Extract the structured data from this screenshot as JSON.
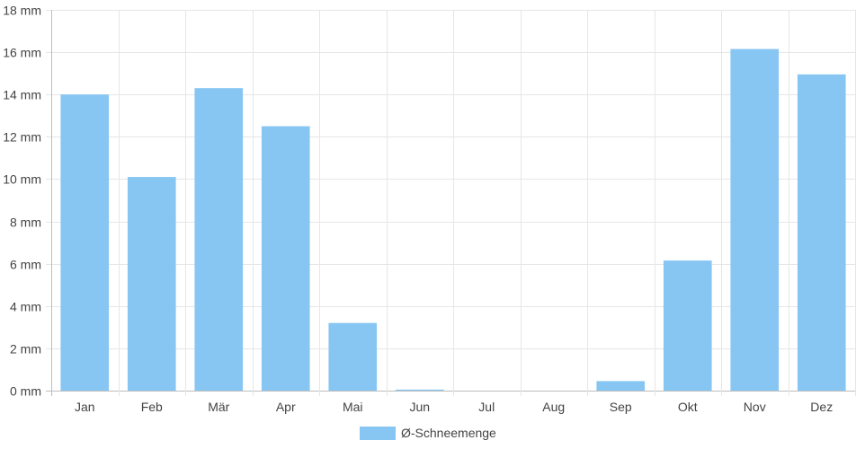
{
  "chart_data": {
    "type": "bar",
    "categories": [
      "Jan",
      "Feb",
      "Mär",
      "Apr",
      "Mai",
      "Jun",
      "Jul",
      "Aug",
      "Sep",
      "Okt",
      "Nov",
      "Dez"
    ],
    "series": [
      {
        "name": "Ø-Schneemenge",
        "values": [
          14.0,
          10.1,
          14.3,
          12.5,
          3.2,
          0.05,
          0,
          0,
          0.45,
          6.15,
          16.15,
          14.95
        ],
        "color": "#87c6f2"
      }
    ],
    "ylim": [
      0,
      18
    ],
    "yticks": [
      0,
      2,
      4,
      6,
      8,
      10,
      12,
      14,
      16,
      18
    ],
    "ytick_labels": [
      "0 mm",
      "2 mm",
      "4 mm",
      "6 mm",
      "8 mm",
      "10 mm",
      "12 mm",
      "14 mm",
      "16 mm",
      "18 mm"
    ],
    "grid": true,
    "legend": "bottom"
  }
}
